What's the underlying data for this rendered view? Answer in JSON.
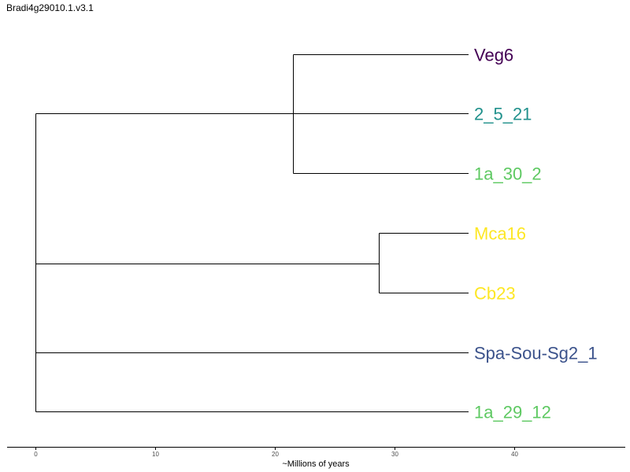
{
  "title": "Bradi4g29010.1.v3.1",
  "axis": {
    "label": "~Millions of years",
    "ticks": [
      0,
      10,
      20,
      30,
      40
    ],
    "range": [
      -2.4,
      49.3
    ]
  },
  "tree": {
    "root_time": 0,
    "leaf_time": 36.2,
    "clades": [
      {
        "leaves": [
          "Veg6",
          "2_5_21",
          "1a_30_2"
        ],
        "node_time": 21.5,
        "root_attach": "2_5_21"
      },
      {
        "leaves": [
          "Mca16",
          "Cb23"
        ],
        "node_time": 28.7,
        "root_attach": "midpoint"
      },
      {
        "leaves": [
          "Spa-Sou-Sg2_1"
        ],
        "node_time": null,
        "root_attach": "Spa-Sou-Sg2_1"
      },
      {
        "leaves": [
          "1a_29_12"
        ],
        "node_time": null,
        "root_attach": "1a_29_12"
      }
    ]
  },
  "leaves": [
    {
      "name": "Veg6",
      "color": "#440154"
    },
    {
      "name": "2_5_21",
      "color": "#21918c"
    },
    {
      "name": "1a_30_2",
      "color": "#5ec962"
    },
    {
      "name": "Mca16",
      "color": "#fde725"
    },
    {
      "name": "Cb23",
      "color": "#fde725"
    },
    {
      "name": "Spa-Sou-Sg2_1",
      "color": "#3b528b"
    },
    {
      "name": "1a_29_12",
      "color": "#5ec962"
    }
  ]
}
